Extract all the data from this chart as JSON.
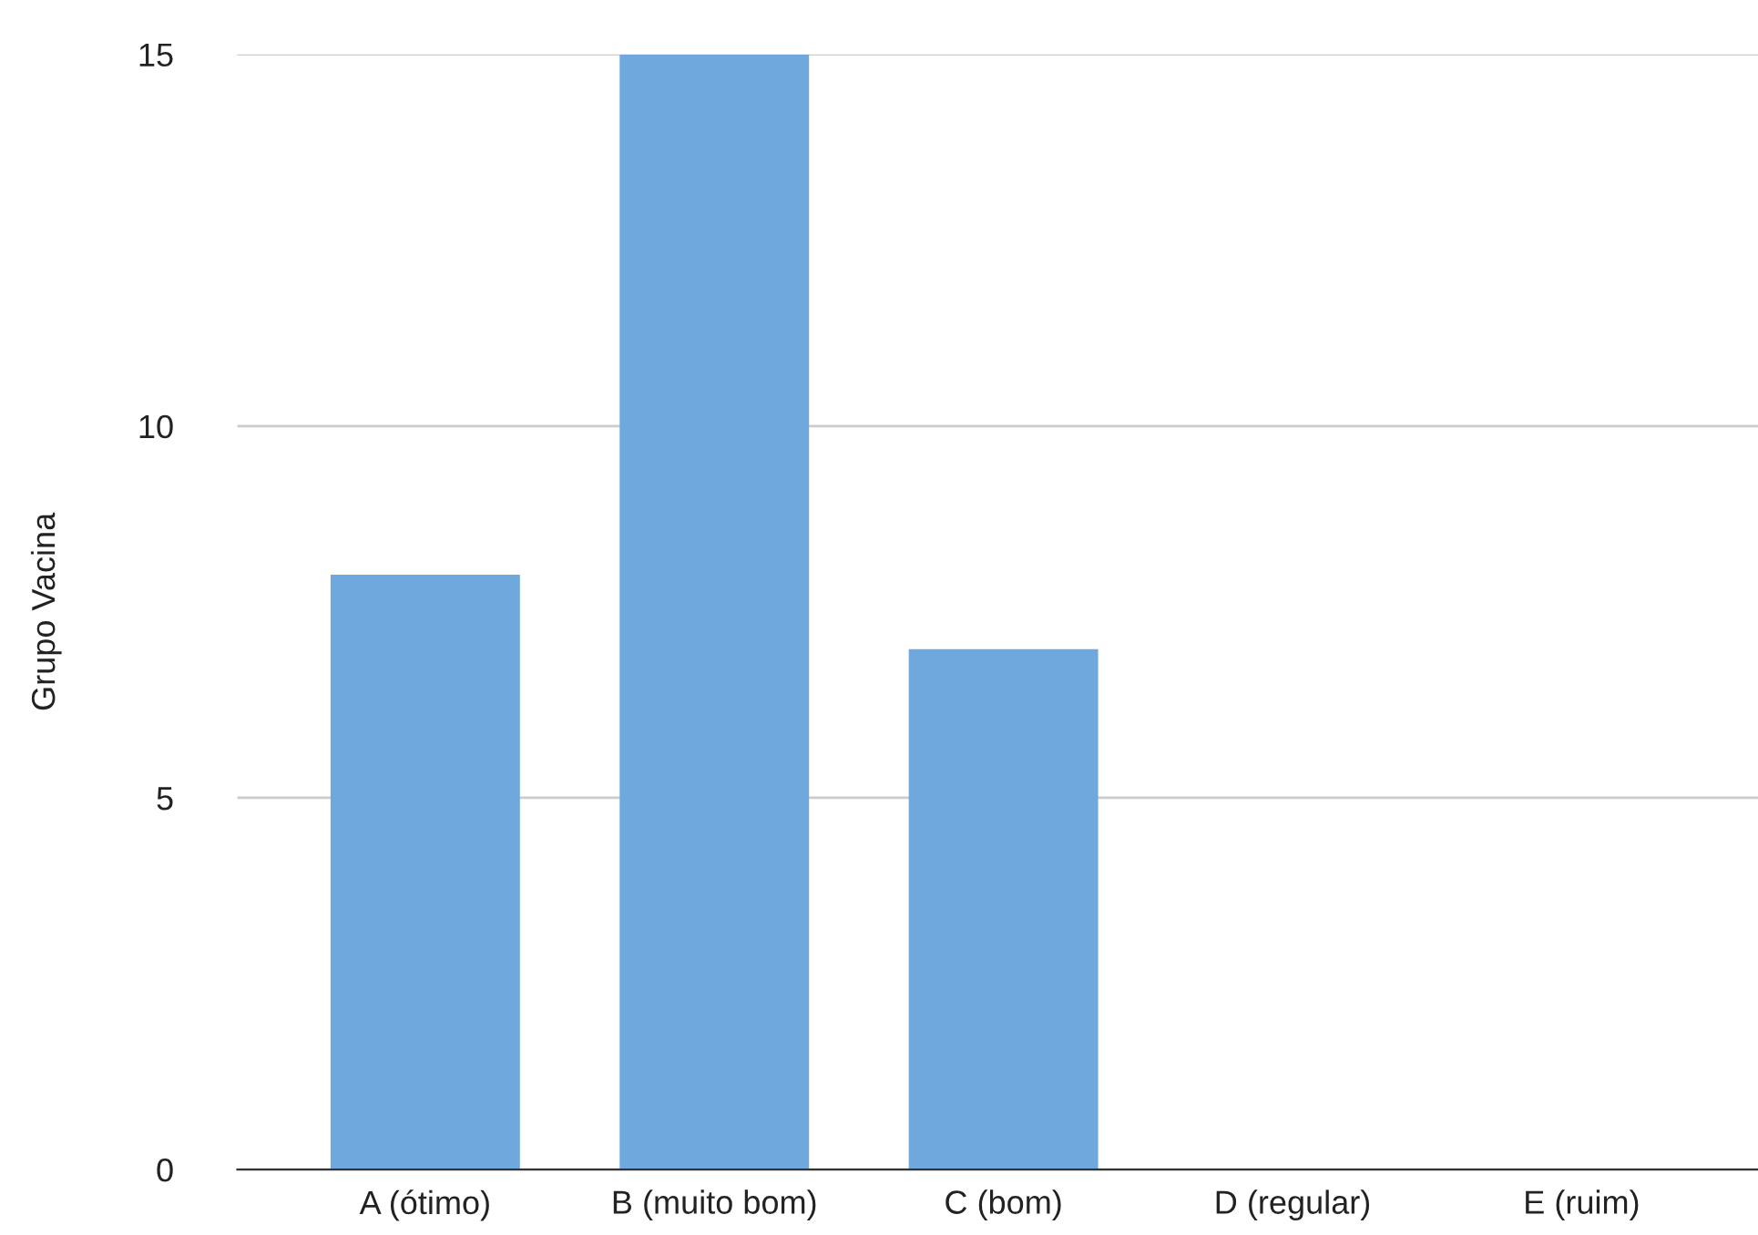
{
  "chart_data": {
    "type": "bar",
    "ylabel": "Grupo Vacina",
    "categories": [
      "A (ótimo)",
      "B (muito bom)",
      "C (bom)",
      "D (regular)",
      "E (ruim)"
    ],
    "values": [
      8,
      15,
      7,
      0,
      0
    ],
    "color": "#6fa8dc",
    "ylim": [
      0,
      15
    ],
    "yticks": [
      0,
      5,
      10,
      15
    ],
    "grid": "y",
    "legend": false
  }
}
